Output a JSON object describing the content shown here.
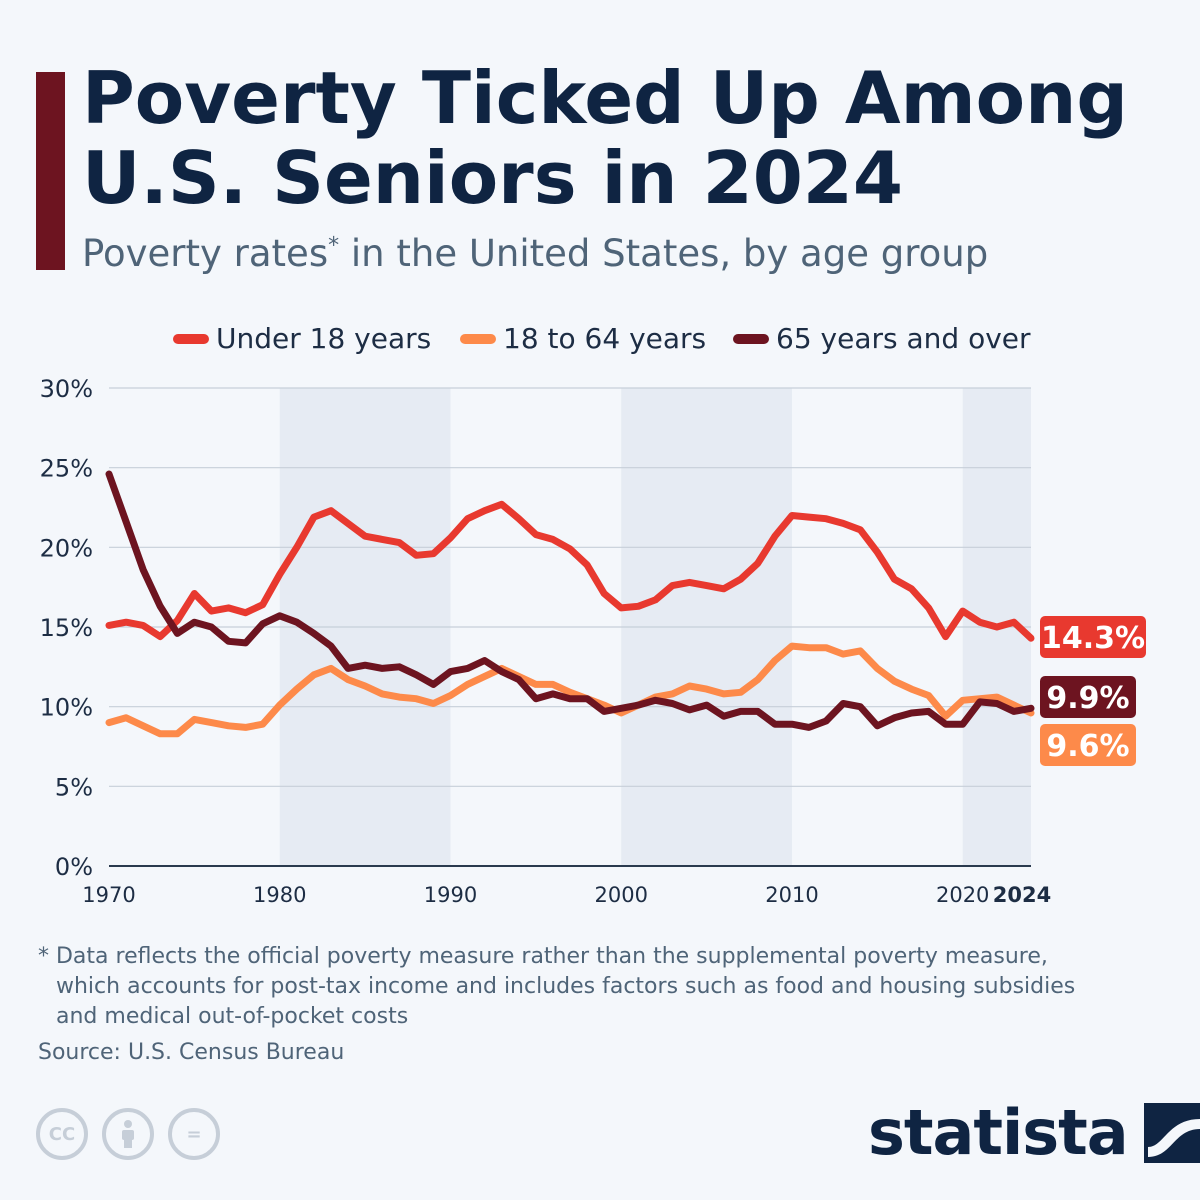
{
  "header": {
    "title": "Poverty Ticked Up Among U.S. Seniors in 2024",
    "subtitle": "Poverty rates",
    "subtitle_mark": "*",
    "subtitle_rest": " in the United States, by age group"
  },
  "chart_data": {
    "type": "line",
    "ylim": [
      0,
      30
    ],
    "yticks": [
      "0%",
      "5%",
      "10%",
      "15%",
      "20%",
      "25%",
      "30%"
    ],
    "xticks": [
      "1970",
      "1980",
      "1990",
      "2000",
      "2010",
      "2020",
      "2024"
    ],
    "grid": true,
    "legend_placement": "top",
    "x": [
      1970,
      1971,
      1972,
      1973,
      1974,
      1975,
      1976,
      1977,
      1978,
      1979,
      1980,
      1981,
      1982,
      1983,
      1984,
      1985,
      1986,
      1987,
      1988,
      1989,
      1990,
      1991,
      1992,
      1993,
      1994,
      1995,
      1996,
      1997,
      1998,
      1999,
      2000,
      2001,
      2002,
      2003,
      2004,
      2005,
      2006,
      2007,
      2008,
      2009,
      2010,
      2011,
      2012,
      2013,
      2014,
      2015,
      2016,
      2017,
      2018,
      2019,
      2020,
      2021,
      2022,
      2023,
      2024
    ],
    "series": [
      {
        "name": "Under 18 years",
        "color": "#e8392f",
        "end_label": "14.3%",
        "values": [
          15.1,
          15.3,
          15.1,
          14.4,
          15.4,
          17.1,
          16.0,
          16.2,
          15.9,
          16.4,
          18.3,
          20.0,
          21.9,
          22.3,
          21.5,
          20.7,
          20.5,
          20.3,
          19.5,
          19.6,
          20.6,
          21.8,
          22.3,
          22.7,
          21.8,
          20.8,
          20.5,
          19.9,
          18.9,
          17.1,
          16.2,
          16.3,
          16.7,
          17.6,
          17.8,
          17.6,
          17.4,
          18.0,
          19.0,
          20.7,
          22.0,
          21.9,
          21.8,
          21.5,
          21.1,
          19.7,
          18.0,
          17.4,
          16.2,
          14.4,
          16.0,
          15.3,
          15.0,
          15.3,
          14.3
        ]
      },
      {
        "name": "18 to 64 years",
        "color": "#fd8a4a",
        "end_label": "9.6%",
        "values": [
          9.0,
          9.3,
          8.8,
          8.3,
          8.3,
          9.2,
          9.0,
          8.8,
          8.7,
          8.9,
          10.1,
          11.1,
          12.0,
          12.4,
          11.7,
          11.3,
          10.8,
          10.6,
          10.5,
          10.2,
          10.7,
          11.4,
          11.9,
          12.4,
          11.9,
          11.4,
          11.4,
          10.9,
          10.5,
          10.1,
          9.6,
          10.1,
          10.6,
          10.8,
          11.3,
          11.1,
          10.8,
          10.9,
          11.7,
          12.9,
          13.8,
          13.7,
          13.7,
          13.3,
          13.5,
          12.4,
          11.6,
          11.1,
          10.7,
          9.4,
          10.4,
          10.5,
          10.6,
          10.1,
          9.6
        ]
      },
      {
        "name": "65 years and over",
        "color": "#6d1420",
        "end_label": "9.9%",
        "values": [
          24.6,
          21.6,
          18.6,
          16.3,
          14.6,
          15.3,
          15.0,
          14.1,
          14.0,
          15.2,
          15.7,
          15.3,
          14.6,
          13.8,
          12.4,
          12.6,
          12.4,
          12.5,
          12.0,
          11.4,
          12.2,
          12.4,
          12.9,
          12.2,
          11.7,
          10.5,
          10.8,
          10.5,
          10.5,
          9.7,
          9.9,
          10.1,
          10.4,
          10.2,
          9.8,
          10.1,
          9.4,
          9.7,
          9.7,
          8.9,
          8.9,
          8.7,
          9.1,
          10.2,
          10.0,
          8.8,
          9.3,
          9.6,
          9.7,
          8.9,
          8.9,
          10.3,
          10.2,
          9.7,
          9.9
        ]
      }
    ]
  },
  "footnote": {
    "line1": "* Data reflects the official poverty measure rather than the supplemental poverty measure,",
    "line2": "which accounts for post-tax income and includes factors such as food and housing subsidies",
    "line3": "and medical out-of-pocket costs"
  },
  "source": "Source: U.S. Census Bureau",
  "license_icons": {
    "cc": "cc-icon",
    "by": "attribution-person-icon",
    "nd": "no-derivatives-icon"
  },
  "license_labels": {
    "cc": "CC",
    "nd": "="
  },
  "logo": {
    "text": "statista",
    "icon": "statista-wave-icon"
  }
}
